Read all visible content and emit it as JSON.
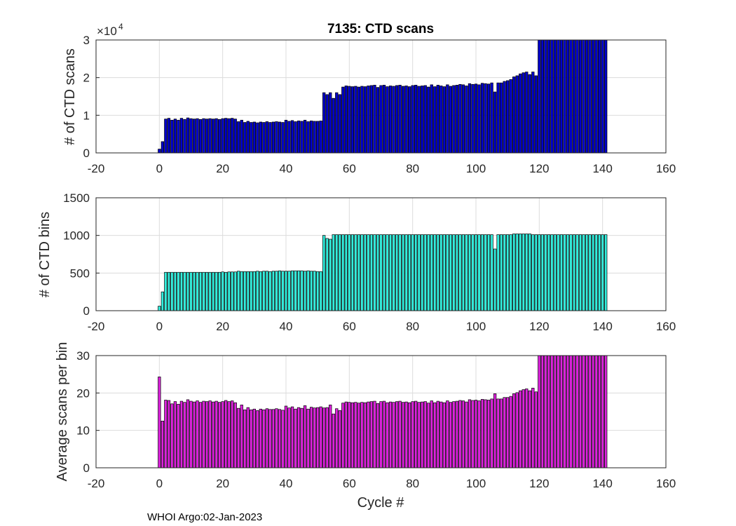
{
  "title": "7135: CTD scans",
  "xlabel": "Cycle #",
  "footer": "WHOI Argo:02-Jan-2023",
  "chart_data": [
    {
      "type": "bar",
      "title": "7135: CTD scans",
      "ylabel": "# of CTD scans",
      "xlim": [
        -20,
        160
      ],
      "ylim": [
        0,
        30000
      ],
      "xticks": [
        "-20",
        "0",
        "20",
        "40",
        "60",
        "80",
        "100",
        "120",
        "140",
        "160"
      ],
      "yticks": [
        "0",
        "1",
        "2",
        "3"
      ],
      "y_exponent_label": "×10",
      "y_exponent_power": "4",
      "grid": true,
      "color": "#0000cc",
      "x_start": 0,
      "values": [
        1000,
        3000,
        9000,
        9200,
        8700,
        9000,
        8700,
        9200,
        8900,
        9300,
        9100,
        9000,
        9100,
        8900,
        9100,
        9000,
        9100,
        9000,
        9100,
        8900,
        9100,
        9200,
        9100,
        9200,
        9000,
        8300,
        8700,
        8100,
        8400,
        8100,
        8200,
        8000,
        8200,
        8100,
        8300,
        8100,
        8200,
        8300,
        8200,
        8100,
        8700,
        8400,
        8600,
        8300,
        8500,
        8400,
        8700,
        8300,
        8500,
        8400,
        8400,
        8500,
        16000,
        15500,
        16000,
        14500,
        16000,
        15500,
        17500,
        17800,
        17700,
        17600,
        17700,
        17500,
        17700,
        17600,
        17800,
        17900,
        18000,
        17400,
        17900,
        18000,
        17600,
        17800,
        17700,
        17900,
        18000,
        17700,
        17800,
        17600,
        17900,
        18000,
        17700,
        17800,
        17900,
        17500,
        18100,
        17600,
        18000,
        17800,
        17600,
        18100,
        17700,
        17900,
        18000,
        18200,
        18100,
        17800,
        18400,
        18200,
        18300,
        18100,
        18500,
        18400,
        18300,
        18600,
        16200,
        18600,
        18600,
        19000,
        19200,
        19500,
        20200,
        20500,
        21000,
        21300,
        21500,
        20800,
        21500,
        20500,
        30000,
        30000,
        30000,
        30000,
        30000,
        30000,
        30000,
        30000,
        30000,
        30000,
        30000,
        30000,
        30000,
        30000,
        30000,
        30000,
        30000,
        30000,
        30000,
        30000,
        30000,
        30000
      ]
    },
    {
      "type": "bar",
      "ylabel": "# of CTD bins",
      "xlim": [
        -20,
        160
      ],
      "ylim": [
        0,
        1500
      ],
      "xticks": [
        "-20",
        "0",
        "20",
        "40",
        "60",
        "80",
        "100",
        "120",
        "140",
        "160"
      ],
      "yticks": [
        "0",
        "500",
        "1000",
        "1500"
      ],
      "grid": true,
      "color": "#33eedd",
      "x_start": 0,
      "values": [
        60,
        250,
        510,
        510,
        510,
        510,
        510,
        510,
        510,
        510,
        510,
        510,
        510,
        510,
        510,
        510,
        510,
        510,
        510,
        510,
        515,
        510,
        515,
        515,
        515,
        525,
        520,
        520,
        520,
        520,
        520,
        525,
        520,
        525,
        525,
        520,
        525,
        525,
        530,
        525,
        525,
        525,
        530,
        530,
        530,
        530,
        525,
        530,
        525,
        525,
        520,
        520,
        1000,
        960,
        950,
        1010,
        1010,
        1010,
        1010,
        1010,
        1010,
        1010,
        1010,
        1010,
        1010,
        1010,
        1010,
        1010,
        1010,
        1010,
        1010,
        1010,
        1010,
        1010,
        1010,
        1010,
        1010,
        1010,
        1010,
        1010,
        1010,
        1010,
        1010,
        1010,
        1010,
        1010,
        1010,
        1010,
        1010,
        1010,
        1010,
        1010,
        1010,
        1010,
        1010,
        1010,
        1010,
        1010,
        1010,
        1010,
        1010,
        1010,
        1010,
        1010,
        1010,
        1010,
        820,
        1010,
        1010,
        1010,
        1010,
        1010,
        1020,
        1020,
        1020,
        1020,
        1020,
        1020,
        1010,
        1010,
        1010,
        1010,
        1010,
        1010,
        1010,
        1010,
        1010,
        1010,
        1010,
        1010,
        1010,
        1010,
        1010,
        1010,
        1010,
        1010,
        1010,
        1010,
        1010,
        1010,
        1010,
        1010
      ]
    },
    {
      "type": "bar",
      "ylabel": "Average scans per bin",
      "xlabel": "Cycle #",
      "xlim": [
        -20,
        160
      ],
      "ylim": [
        0,
        30
      ],
      "xticks": [
        "-20",
        "0",
        "20",
        "40",
        "60",
        "80",
        "100",
        "120",
        "140",
        "160"
      ],
      "yticks": [
        "0",
        "10",
        "20",
        "30"
      ],
      "grid": true,
      "color": "#dd22dd",
      "x_start": 0,
      "values": [
        24.3,
        12.5,
        18.1,
        18.0,
        17.1,
        17.7,
        17.0,
        17.8,
        17.5,
        18.2,
        17.8,
        17.6,
        17.9,
        17.5,
        17.8,
        17.7,
        17.9,
        17.6,
        17.8,
        17.5,
        17.7,
        18.0,
        17.7,
        17.9,
        17.4,
        15.9,
        16.8,
        15.5,
        16.1,
        15.5,
        15.7,
        15.3,
        15.7,
        15.5,
        15.8,
        15.6,
        15.6,
        15.8,
        15.6,
        15.4,
        16.5,
        16.0,
        16.3,
        15.7,
        16.1,
        15.9,
        16.6,
        15.7,
        16.2,
        16.0,
        16.1,
        16.3,
        16.0,
        16.1,
        16.8,
        14.4,
        15.8,
        15.3,
        17.3,
        17.6,
        17.5,
        17.4,
        17.5,
        17.3,
        17.5,
        17.4,
        17.6,
        17.7,
        17.8,
        17.2,
        17.7,
        17.8,
        17.4,
        17.6,
        17.5,
        17.7,
        17.8,
        17.5,
        17.6,
        17.4,
        17.7,
        17.8,
        17.5,
        17.6,
        17.7,
        17.3,
        17.9,
        17.4,
        17.8,
        17.6,
        17.4,
        17.9,
        17.5,
        17.7,
        17.8,
        18.0,
        17.9,
        17.6,
        18.2,
        18.0,
        18.1,
        17.9,
        18.3,
        18.2,
        18.1,
        18.4,
        19.8,
        18.4,
        18.4,
        18.8,
        18.8,
        19.1,
        19.8,
        20.1,
        20.6,
        20.9,
        21.1,
        20.6,
        21.3,
        20.3,
        30,
        30,
        30,
        30,
        30,
        30,
        30,
        30,
        30,
        30,
        30,
        30,
        30,
        30,
        30,
        30,
        30,
        30,
        30,
        30,
        30,
        30
      ]
    }
  ]
}
